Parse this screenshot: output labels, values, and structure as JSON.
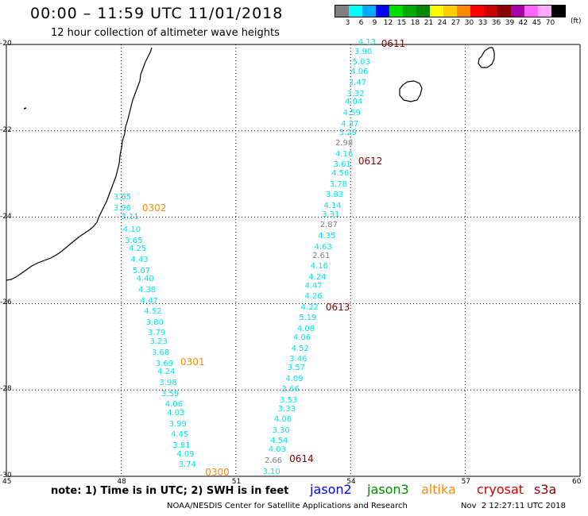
{
  "header": {
    "title": "00:00 – 11:59 UTC 11/01/2018",
    "subtitle": "12 hour collection of altimeter wave heights"
  },
  "legend": {
    "unit": "(ft)",
    "swatches": [
      {
        "color": "#808080",
        "label": "3"
      },
      {
        "color": "#00ffff",
        "label": "6"
      },
      {
        "color": "#00aaff",
        "label": "9"
      },
      {
        "color": "#0000ff",
        "label": "12"
      },
      {
        "color": "#00dd00",
        "label": "15"
      },
      {
        "color": "#00aa00",
        "label": "18"
      },
      {
        "color": "#008800",
        "label": "21"
      },
      {
        "color": "#ffff00",
        "label": "24"
      },
      {
        "color": "#ffcc00",
        "label": "27"
      },
      {
        "color": "#ff8800",
        "label": "30"
      },
      {
        "color": "#ff0000",
        "label": "33"
      },
      {
        "color": "#cc0000",
        "label": "36"
      },
      {
        "color": "#880000",
        "label": "39"
      },
      {
        "color": "#aa00aa",
        "label": "42"
      },
      {
        "color": "#ff66ff",
        "label": "45"
      },
      {
        "color": "#ffaaff",
        "label": "70"
      },
      {
        "color": "#000000",
        "label": ""
      }
    ]
  },
  "map": {
    "lat_labels": [
      "-20",
      "-22",
      "-24",
      "-26",
      "-28",
      "-30"
    ],
    "lon_labels": [
      "45",
      "48",
      "51",
      "54",
      "57",
      "60"
    ],
    "lat_range": [
      -30,
      -20
    ],
    "lon_range": [
      45,
      60
    ]
  },
  "colors": {
    "jason2": "#0000ff",
    "jason3": "#008800",
    "altika": "#ff8800",
    "cryosat": "#cc0000",
    "s3a": "#880000",
    "swh_low": "#808080",
    "swh_mid": "#00e5e5"
  },
  "tracks": [
    {
      "satellite": "altika",
      "time_labels": [
        {
          "text": "0302",
          "lat": -23.78,
          "lon": 48.55
        },
        {
          "text": "0301",
          "lat": -27.36,
          "lon": 49.55
        },
        {
          "text": "0300",
          "lat": -29.9,
          "lon": 50.2
        }
      ],
      "points": [
        {
          "value": "3.65",
          "lat": -23.55,
          "lon": 47.8
        },
        {
          "value": "3.96",
          "lat": -23.8,
          "lon": 47.8
        },
        {
          "value": "3.11",
          "lat": -24.0,
          "lon": 48.0
        },
        {
          "value": "4.10",
          "lat": -24.3,
          "lon": 48.05
        },
        {
          "value": "3.65",
          "lat": -24.55,
          "lon": 48.1
        },
        {
          "value": "4.25",
          "lat": -24.75,
          "lon": 48.2
        },
        {
          "value": "4.43",
          "lat": -25.0,
          "lon": 48.25
        },
        {
          "value": "5.07",
          "lat": -25.25,
          "lon": 48.3
        },
        {
          "value": "4.40",
          "lat": -25.45,
          "lon": 48.4
        },
        {
          "value": "4.38",
          "lat": -25.7,
          "lon": 48.45
        },
        {
          "value": "4.47",
          "lat": -25.95,
          "lon": 48.5
        },
        {
          "value": "4.52",
          "lat": -26.2,
          "lon": 48.6
        },
        {
          "value": "3.80",
          "lat": -26.45,
          "lon": 48.65
        },
        {
          "value": "3.79",
          "lat": -26.7,
          "lon": 48.7
        },
        {
          "value": "3.23",
          "lat": -26.9,
          "lon": 48.75
        },
        {
          "value": "3.68",
          "lat": -27.15,
          "lon": 48.8
        },
        {
          "value": "3.69",
          "lat": -27.4,
          "lon": 48.9
        },
        {
          "value": "4.24",
          "lat": -27.6,
          "lon": 48.95
        },
        {
          "value": "3.98",
          "lat": -27.85,
          "lon": 49.0
        },
        {
          "value": "3.59",
          "lat": -28.1,
          "lon": 49.05
        },
        {
          "value": "4.06",
          "lat": -28.35,
          "lon": 49.15
        },
        {
          "value": "4.03",
          "lat": -28.55,
          "lon": 49.2
        },
        {
          "value": "3.99",
          "lat": -28.8,
          "lon": 49.25
        },
        {
          "value": "4.45",
          "lat": -29.05,
          "lon": 49.3
        },
        {
          "value": "3.81",
          "lat": -29.3,
          "lon": 49.35
        },
        {
          "value": "4.09",
          "lat": -29.5,
          "lon": 49.45
        },
        {
          "value": "3.74",
          "lat": -29.75,
          "lon": 49.5
        }
      ]
    },
    {
      "satellite": "s3a",
      "time_labels": [
        {
          "text": "0611",
          "lat": -19.98,
          "lon": 54.8
        },
        {
          "text": "0612",
          "lat": -22.7,
          "lon": 54.2
        },
        {
          "text": "0613",
          "lat": -26.08,
          "lon": 53.35
        },
        {
          "text": "0614",
          "lat": -29.6,
          "lon": 52.4
        }
      ],
      "points": [
        {
          "value": "4.13",
          "lat": -19.97,
          "lon": 54.2
        },
        {
          "value": "3.90",
          "lat": -20.18,
          "lon": 54.1
        },
        {
          "value": "5.03",
          "lat": -20.43,
          "lon": 54.05
        },
        {
          "value": "4.06",
          "lat": -20.65,
          "lon": 54.0
        },
        {
          "value": "3.47",
          "lat": -20.9,
          "lon": 53.95
        },
        {
          "value": "3.32",
          "lat": -21.15,
          "lon": 53.9
        },
        {
          "value": "4.04",
          "lat": -21.35,
          "lon": 53.85
        },
        {
          "value": "4.59",
          "lat": -21.6,
          "lon": 53.8
        },
        {
          "value": "4.37",
          "lat": -21.85,
          "lon": 53.75
        },
        {
          "value": "3.29",
          "lat": -22.05,
          "lon": 53.7
        },
        {
          "value": "2.98",
          "lat": -22.3,
          "lon": 53.6
        },
        {
          "value": "4.16",
          "lat": -22.55,
          "lon": 53.6
        },
        {
          "value": "3.61",
          "lat": -22.8,
          "lon": 53.55
        },
        {
          "value": "4.56",
          "lat": -23.0,
          "lon": 53.5
        },
        {
          "value": "3.78",
          "lat": -23.25,
          "lon": 53.45
        },
        {
          "value": "3.83",
          "lat": -23.5,
          "lon": 53.35
        },
        {
          "value": "4.14",
          "lat": -23.75,
          "lon": 53.3
        },
        {
          "value": "3.31",
          "lat": -23.95,
          "lon": 53.25
        },
        {
          "value": "2.87",
          "lat": -24.2,
          "lon": 53.2
        },
        {
          "value": "4.35",
          "lat": -24.45,
          "lon": 53.15
        },
        {
          "value": "4.63",
          "lat": -24.7,
          "lon": 53.05
        },
        {
          "value": "2.61",
          "lat": -24.9,
          "lon": 53.0
        },
        {
          "value": "4.16",
          "lat": -25.15,
          "lon": 52.95
        },
        {
          "value": "4.24",
          "lat": -25.4,
          "lon": 52.9
        },
        {
          "value": "4.47",
          "lat": -25.6,
          "lon": 52.8
        },
        {
          "value": "4.26",
          "lat": -25.85,
          "lon": 52.8
        },
        {
          "value": "4.22",
          "lat": -26.1,
          "lon": 52.7
        },
        {
          "value": "5.19",
          "lat": -26.35,
          "lon": 52.65
        },
        {
          "value": "4.08",
          "lat": -26.6,
          "lon": 52.6
        },
        {
          "value": "4.06",
          "lat": -26.8,
          "lon": 52.5
        },
        {
          "value": "4.52",
          "lat": -27.05,
          "lon": 52.45
        },
        {
          "value": "3.46",
          "lat": -27.3,
          "lon": 52.4
        },
        {
          "value": "3.57",
          "lat": -27.5,
          "lon": 52.35
        },
        {
          "value": "4.09",
          "lat": -27.75,
          "lon": 52.3
        },
        {
          "value": "3.66",
          "lat": -28.0,
          "lon": 52.2
        },
        {
          "value": "3.53",
          "lat": -28.25,
          "lon": 52.15
        },
        {
          "value": "3.33",
          "lat": -28.45,
          "lon": 52.1
        },
        {
          "value": "4.06",
          "lat": -28.7,
          "lon": 52.0
        },
        {
          "value": "3.30",
          "lat": -28.95,
          "lon": 51.95
        },
        {
          "value": "4.54",
          "lat": -29.2,
          "lon": 51.9
        },
        {
          "value": "4.03",
          "lat": -29.4,
          "lon": 51.85
        },
        {
          "value": "2.66",
          "lat": -29.65,
          "lon": 51.75
        },
        {
          "value": "3.10",
          "lat": -29.9,
          "lon": 51.7
        }
      ]
    }
  ],
  "footer": {
    "note": "note: 1) Time is in UTC; 2) SWH is in feet",
    "satellites": [
      {
        "name": "jason2",
        "color": "#0000ff"
      },
      {
        "name": "jason3",
        "color": "#008800"
      },
      {
        "name": "altika",
        "color": "#ff8800"
      },
      {
        "name": "cryosat",
        "color": "#cc0000"
      },
      {
        "name": "s3a",
        "color": "#880000"
      }
    ],
    "credit": "NOAA/NESDIS Center for Satellite Applications and Research",
    "generated": "Nov  2 12:27:11 UTC 2018"
  }
}
